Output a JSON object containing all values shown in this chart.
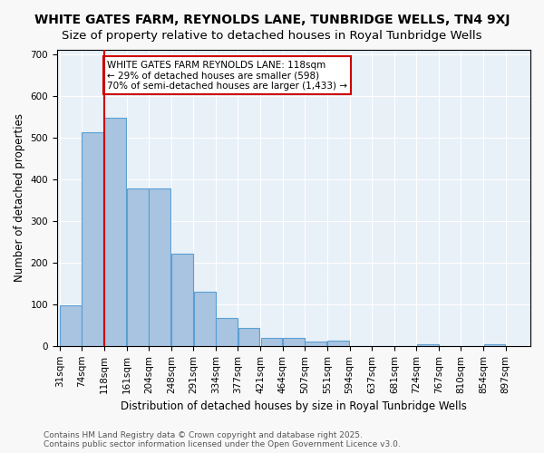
{
  "title": "WHITE GATES FARM, REYNOLDS LANE, TUNBRIDGE WELLS, TN4 9XJ",
  "subtitle": "Size of property relative to detached houses in Royal Tunbridge Wells",
  "xlabel": "Distribution of detached houses by size in Royal Tunbridge Wells",
  "ylabel": "Number of detached properties",
  "bar_color": "#a8c4e0",
  "bar_edge_color": "#5a9fd4",
  "background_color": "#e8f0f8",
  "grid_color": "#ffffff",
  "vline_x": 118,
  "vline_color": "#cc0000",
  "annotation_text": "WHITE GATES FARM REYNOLDS LANE: 118sqm\n← 29% of detached houses are smaller (598)\n70% of semi-detached houses are larger (1,433) →",
  "annotation_box_color": "#ffffff",
  "annotation_border_color": "#cc0000",
  "bin_labels": [
    "31sqm",
    "74sqm",
    "118sqm",
    "161sqm",
    "204sqm",
    "248sqm",
    "291sqm",
    "334sqm",
    "377sqm",
    "421sqm",
    "464sqm",
    "507sqm",
    "551sqm",
    "594sqm",
    "637sqm",
    "681sqm",
    "724sqm",
    "767sqm",
    "810sqm",
    "854sqm",
    "897sqm"
  ],
  "bin_edges": [
    31,
    74,
    118,
    161,
    204,
    248,
    291,
    334,
    377,
    421,
    464,
    507,
    551,
    594,
    637,
    681,
    724,
    767,
    810,
    854,
    897
  ],
  "bar_heights": [
    97,
    512,
    548,
    377,
    377,
    222,
    130,
    68,
    43,
    20,
    20,
    11,
    12,
    0,
    0,
    0,
    5,
    0,
    0,
    5
  ],
  "ylim": [
    0,
    710
  ],
  "yticks": [
    0,
    100,
    200,
    300,
    400,
    500,
    600,
    700
  ],
  "footer_text": "Contains HM Land Registry data © Crown copyright and database right 2025.\nContains public sector information licensed under the Open Government Licence v3.0.",
  "title_fontsize": 10,
  "subtitle_fontsize": 9.5,
  "axis_label_fontsize": 8.5,
  "tick_fontsize": 7.5,
  "annotation_fontsize": 7.5,
  "footer_fontsize": 6.5
}
